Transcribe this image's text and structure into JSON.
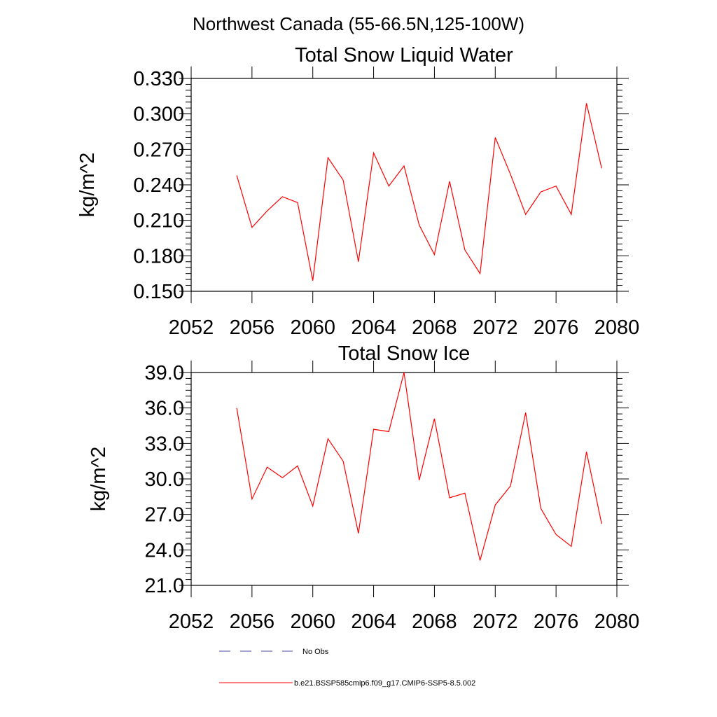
{
  "suptitle": "Northwest Canada (55-66.5N,125-100W)",
  "colors": {
    "model": "#ff0000",
    "obs": "#4a4aa0",
    "axis": "#000000"
  },
  "legend": {
    "obs_label": "No Obs",
    "model_label": "b.e21.BSSP585cmip6.f09_g17.CMIP6-SSP5-8.5.002"
  },
  "chart_data": [
    {
      "type": "line",
      "title": "Total Snow Liquid Water",
      "xlabel": "",
      "ylabel": "kg/m^2",
      "xlim": [
        2052,
        2080
      ],
      "ylim": [
        0.15,
        0.33
      ],
      "xticks": [
        "2052",
        "2056",
        "2060",
        "2064",
        "2068",
        "2072",
        "2076",
        "2080"
      ],
      "yticks": [
        "0.150",
        "0.180",
        "0.210",
        "0.240",
        "0.270",
        "0.300",
        "0.330"
      ],
      "x": [
        2055,
        2056,
        2057,
        2058,
        2059,
        2060,
        2061,
        2062,
        2063,
        2064,
        2065,
        2066,
        2067,
        2068,
        2069,
        2070,
        2071,
        2072,
        2073,
        2074,
        2075,
        2076,
        2077,
        2078,
        2079
      ],
      "series": [
        {
          "name": "b.e21.BSSP585cmip6.f09_g17.CMIP6-SSP5-8.5.002",
          "values": [
            0.248,
            0.204,
            0.218,
            0.23,
            0.225,
            0.159,
            0.263,
            0.244,
            0.175,
            0.267,
            0.239,
            0.256,
            0.206,
            0.181,
            0.243,
            0.185,
            0.165,
            0.28,
            0.249,
            0.215,
            0.234,
            0.239,
            0.215,
            0.309,
            0.254
          ]
        }
      ]
    },
    {
      "type": "line",
      "title": "Total Snow Ice",
      "xlabel": "",
      "ylabel": "kg/m^2",
      "xlim": [
        2052,
        2080
      ],
      "ylim": [
        21,
        39
      ],
      "xticks": [
        "2052",
        "2056",
        "2060",
        "2064",
        "2068",
        "2072",
        "2076",
        "2080"
      ],
      "yticks": [
        "21.0",
        "24.0",
        "27.0",
        "30.0",
        "33.0",
        "36.0",
        "39.0"
      ],
      "x": [
        2055,
        2056,
        2057,
        2058,
        2059,
        2060,
        2061,
        2062,
        2063,
        2064,
        2065,
        2066,
        2067,
        2068,
        2069,
        2070,
        2071,
        2072,
        2073,
        2074,
        2075,
        2076,
        2077,
        2078,
        2079
      ],
      "series": [
        {
          "name": "b.e21.BSSP585cmip6.f09_g17.CMIP6-SSP5-8.5.002",
          "values": [
            36.0,
            28.3,
            31.0,
            30.1,
            31.1,
            27.7,
            33.4,
            31.5,
            25.4,
            34.2,
            34.0,
            39.0,
            29.9,
            35.1,
            28.4,
            28.8,
            23.1,
            27.8,
            29.4,
            35.6,
            27.5,
            25.3,
            24.3,
            32.3,
            26.2
          ]
        }
      ]
    }
  ]
}
